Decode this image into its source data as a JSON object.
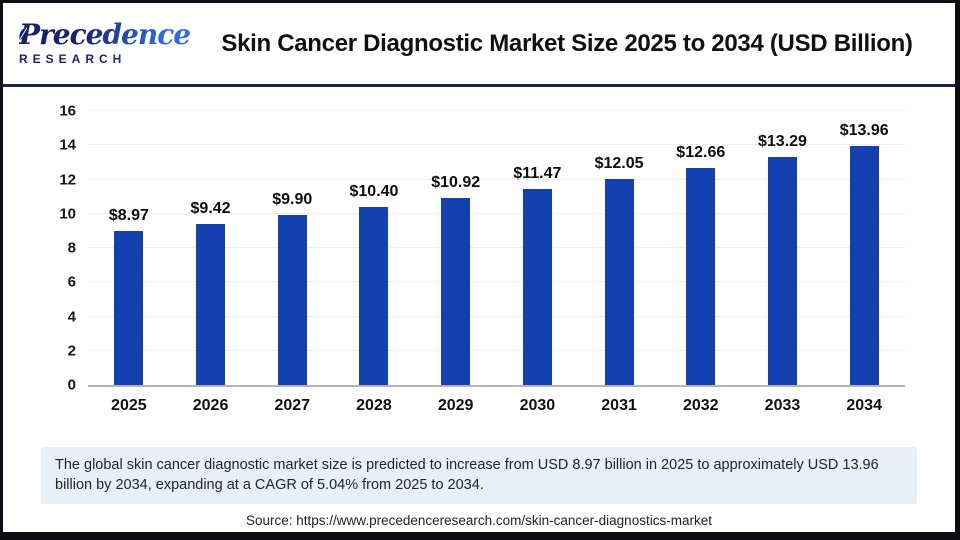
{
  "header": {
    "logo": {
      "line1": "Precedence",
      "line2": "RESEARCH"
    },
    "title": "Skin Cancer Diagnostic Market Size 2025 to 2034 (USD Billion)"
  },
  "chart_data": {
    "type": "bar",
    "title": "Skin Cancer Diagnostic Market Size 2025 to 2034 (USD Billion)",
    "categories": [
      "2025",
      "2026",
      "2027",
      "2028",
      "2029",
      "2030",
      "2031",
      "2032",
      "2033",
      "2034"
    ],
    "values": [
      8.97,
      9.42,
      9.9,
      10.4,
      10.92,
      11.47,
      12.05,
      12.66,
      13.29,
      13.96
    ],
    "bar_labels": [
      "$8.97",
      "$9.42",
      "$9.90",
      "$10.40",
      "$10.92",
      "$11.47",
      "$12.05",
      "$12.66",
      "$13.29",
      "$13.96"
    ],
    "unit": "USD Billion",
    "xlabel": "",
    "ylabel": "",
    "ylim": [
      0,
      16
    ],
    "ytick_step": 2,
    "grid": true,
    "legend": false
  },
  "note": "The global skin cancer diagnostic market size is predicted to increase from USD 8.97 billion in 2025 to approximately USD 13.96 billion by 2034, expanding at a CAGR of 5.04% from 2025 to 2034.",
  "source": "Source: https://www.precedenceresearch.com/skin-cancer-diagnostics-market",
  "colors": {
    "bar": "#1540b0",
    "note_bg": "#e9eff9",
    "divider": "#1b2347",
    "outer_border": "#0d0d14",
    "gridline": "#efefef",
    "baseline": "#b3b3b3"
  }
}
